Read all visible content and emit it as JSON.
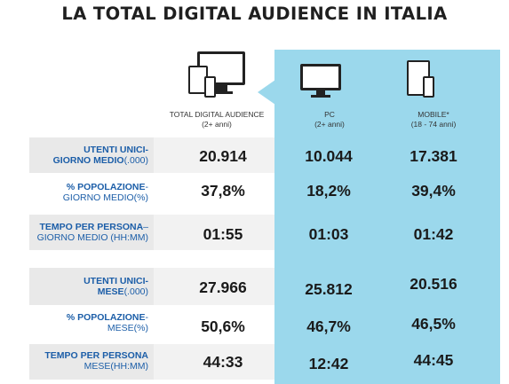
{
  "title": "LA TOTAL DIGITAL AUDIENCE IN ITALIA",
  "columns": [
    {
      "label": "TOTAL DIGITAL AUDIENCE",
      "sub": "(2+ anni)",
      "icon": "multi-device-icon"
    },
    {
      "label": "PC",
      "sub": "(2+ anni)",
      "icon": "desktop-monitor-icon"
    },
    {
      "label": "MOBILE*",
      "sub": "(18 - 74 anni)",
      "icon": "tablet-phone-icon"
    }
  ],
  "rows": [
    {
      "label_bold": "UTENTI UNICI-",
      "label_bold2": "GIORNO MEDIO",
      "label_rest": "(.000)",
      "values": [
        "20.914",
        "10.044",
        "17.381"
      ]
    },
    {
      "label_bold": "% POPOLAZIONE",
      "label_bold2": "",
      "label_rest": "-",
      "label_line2": "GIORNO MEDIO(%)",
      "values": [
        "37,8%",
        "18,2%",
        "39,4%"
      ]
    },
    {
      "label_bold": "TEMPO PER PERSONA",
      "label_rest": "–",
      "label_line2": "GIORNO MEDIO (HH:MM)",
      "values": [
        "01:55",
        "01:03",
        "01:42"
      ]
    },
    {
      "label_bold": "UTENTI UNICI-",
      "label_bold2": "MESE",
      "label_rest": "(.000)",
      "values": [
        "27.966",
        "25.812",
        "20.516"
      ]
    },
    {
      "label_bold": "% POPOLAZIONE",
      "label_rest": "-",
      "label_line2": "MESE(%)",
      "values": [
        "50,6%",
        "46,7%",
        "46,5%"
      ]
    },
    {
      "label_bold": "TEMPO PER PERSONA",
      "label_rest": "",
      "label_line2": "MESE(HH:MM)",
      "values": [
        "44:33",
        "12:42",
        "44:45"
      ]
    }
  ],
  "colors": {
    "accent": "#9bd8ec",
    "label_blue": "#1c5ea8",
    "row_grey": "#e9e9e9"
  }
}
